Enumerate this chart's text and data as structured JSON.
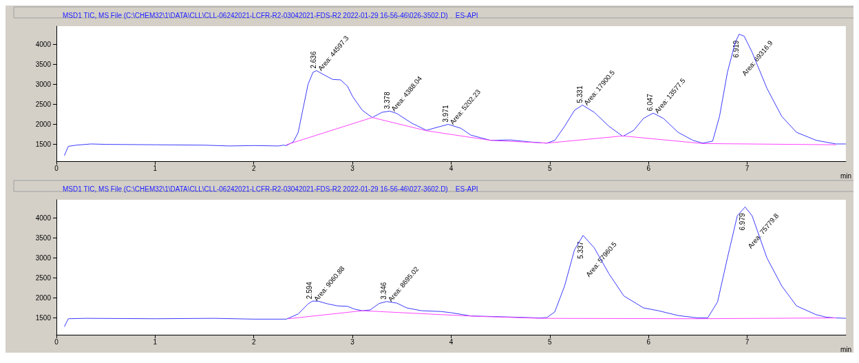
{
  "chart_data": [
    {
      "type": "line",
      "title": "MSD1 TIC, MS File (C:\\CHEM32\\1\\DATA\\CLL\\CLL-06242021-LCFR-R2-03042021-FDS-R2 2022-01-29 16-56-46\\026-3502.D)    ES-API",
      "xlabel": "min",
      "xlim": [
        0,
        8
      ],
      "xticks": [
        0,
        1,
        2,
        3,
        4,
        5,
        6,
        7
      ],
      "ylim": [
        1080,
        4450
      ],
      "yticks": [
        1500,
        2000,
        2500,
        3000,
        3500,
        4000
      ],
      "series": [
        {
          "color": "#3a3aff",
          "x": [
            0.08,
            0.12,
            0.2,
            0.35,
            0.5,
            1.0,
            1.5,
            1.75,
            2.0,
            2.25,
            2.3,
            2.33,
            2.4,
            2.45,
            2.5,
            2.55,
            2.6,
            2.636,
            2.7,
            2.8,
            2.88,
            2.95,
            3.0,
            3.1,
            3.2,
            3.3,
            3.378,
            3.45,
            3.6,
            3.75,
            3.85,
            3.971,
            4.1,
            4.2,
            4.4,
            4.6,
            4.8,
            4.97,
            5.05,
            5.15,
            5.25,
            5.331,
            5.45,
            5.6,
            5.74,
            5.85,
            5.95,
            6.047,
            6.15,
            6.3,
            6.45,
            6.55,
            6.65,
            6.72,
            6.8,
            6.88,
            6.919,
            6.97,
            7.05,
            7.2,
            7.35,
            7.5,
            7.7,
            7.9,
            8.0
          ],
          "values": [
            1220,
            1450,
            1480,
            1510,
            1500,
            1490,
            1480,
            1460,
            1470,
            1460,
            1480,
            1470,
            1560,
            1800,
            2400,
            3000,
            3300,
            3340,
            3250,
            3120,
            3110,
            2950,
            2700,
            2350,
            2170,
            2300,
            2330,
            2270,
            2030,
            1850,
            1920,
            2000,
            1900,
            1730,
            1600,
            1610,
            1560,
            1530,
            1600,
            1950,
            2350,
            2480,
            2300,
            1950,
            1700,
            1850,
            2150,
            2280,
            2150,
            1800,
            1600,
            1530,
            1580,
            2200,
            3300,
            4050,
            4250,
            4200,
            3800,
            2900,
            2200,
            1800,
            1600,
            1510,
            1510
          ]
        },
        {
          "color": "#ff44ff",
          "x": [
            2.33,
            3.2,
            3.75,
            4.4,
            4.97,
            5.74,
            6.55,
            7.9
          ],
          "values": [
            1490,
            2170,
            1840,
            1600,
            1530,
            1710,
            1520,
            1490
          ]
        }
      ],
      "annotations": [
        {
          "text": "2.636",
          "x": 2.636,
          "y": 3340
        },
        {
          "text": "Area: 44597.3",
          "x": 2.636,
          "y": 3340
        },
        {
          "text": "3.378",
          "x": 3.378,
          "y": 2330
        },
        {
          "text": "Area: 4388.04",
          "x": 3.378,
          "y": 2330
        },
        {
          "text": "3.971",
          "x": 3.971,
          "y": 2000
        },
        {
          "text": "Area: 5202.23",
          "x": 3.971,
          "y": 2000
        },
        {
          "text": "5.331",
          "x": 5.331,
          "y": 2480
        },
        {
          "text": "Area: 17900.5",
          "x": 5.331,
          "y": 2480
        },
        {
          "text": "6.047",
          "x": 6.047,
          "y": 2280
        },
        {
          "text": "Area: 13577.5",
          "x": 6.047,
          "y": 2280
        },
        {
          "text": "6.919",
          "x": 6.919,
          "y": 4250
        },
        {
          "text": "Area: 69316.9",
          "x": 6.919,
          "y": 4250
        }
      ]
    },
    {
      "type": "line",
      "title": "MSD1 TIC, MS File (C:\\CHEM32\\1\\DATA\\CLL\\CLL-06242021-LCFR-R2-03042021-FDS-R2 2022-01-29 16-56-46\\027-3602.D)    ES-API",
      "xlabel": "min",
      "xlim": [
        0,
        8
      ],
      "xticks": [
        0,
        1,
        2,
        3,
        4,
        5,
        6,
        7
      ],
      "ylim": [
        1080,
        4450
      ],
      "yticks": [
        1500,
        2000,
        2500,
        3000,
        3500,
        4000
      ],
      "series": [
        {
          "color": "#3a3aff",
          "x": [
            0.08,
            0.12,
            0.3,
            1.0,
            1.6,
            2.0,
            2.33,
            2.45,
            2.55,
            2.594,
            2.65,
            2.75,
            2.85,
            2.95,
            3.02,
            3.1,
            3.18,
            3.27,
            3.346,
            3.45,
            3.55,
            3.7,
            3.9,
            4.0,
            4.2,
            4.5,
            4.9,
            4.97,
            5.05,
            5.15,
            5.25,
            5.337,
            5.45,
            5.6,
            5.75,
            5.95,
            6.1,
            6.3,
            6.5,
            6.6,
            6.7,
            6.8,
            6.9,
            6.979,
            7.05,
            7.2,
            7.35,
            7.5,
            7.7,
            7.8,
            7.9,
            8.0
          ],
          "values": [
            1280,
            1480,
            1490,
            1480,
            1490,
            1470,
            1470,
            1600,
            1850,
            1920,
            1920,
            1850,
            1800,
            1790,
            1720,
            1680,
            1700,
            1860,
            1910,
            1870,
            1750,
            1680,
            1660,
            1630,
            1550,
            1530,
            1500,
            1510,
            1650,
            2300,
            3200,
            3560,
            3250,
            2600,
            2050,
            1750,
            1680,
            1560,
            1500,
            1500,
            1900,
            3000,
            4050,
            4270,
            4050,
            3000,
            2300,
            1800,
            1580,
            1520,
            1500,
            1490
          ]
        },
        {
          "color": "#ff44ff",
          "x": [
            2.35,
            3.1,
            4.25,
            4.9,
            6.5,
            7.9
          ],
          "values": [
            1480,
            1680,
            1540,
            1490,
            1480,
            1500
          ]
        }
      ],
      "annotations": [
        {
          "text": "2.594",
          "x": 2.594,
          "y": 1920
        },
        {
          "text": "Area: 9060.88",
          "x": 2.594,
          "y": 1920
        },
        {
          "text": "3.346",
          "x": 3.346,
          "y": 1910
        },
        {
          "text": "Area: 8695.02",
          "x": 3.346,
          "y": 1910
        },
        {
          "text": "5.337",
          "x": 5.337,
          "y": 3560
        },
        {
          "text": "Area: 57960.5",
          "x": 5.337,
          "y": 3560
        },
        {
          "text": "6.979",
          "x": 6.979,
          "y": 4270
        },
        {
          "text": "Area: 75779.8",
          "x": 6.979,
          "y": 4270
        }
      ]
    }
  ]
}
